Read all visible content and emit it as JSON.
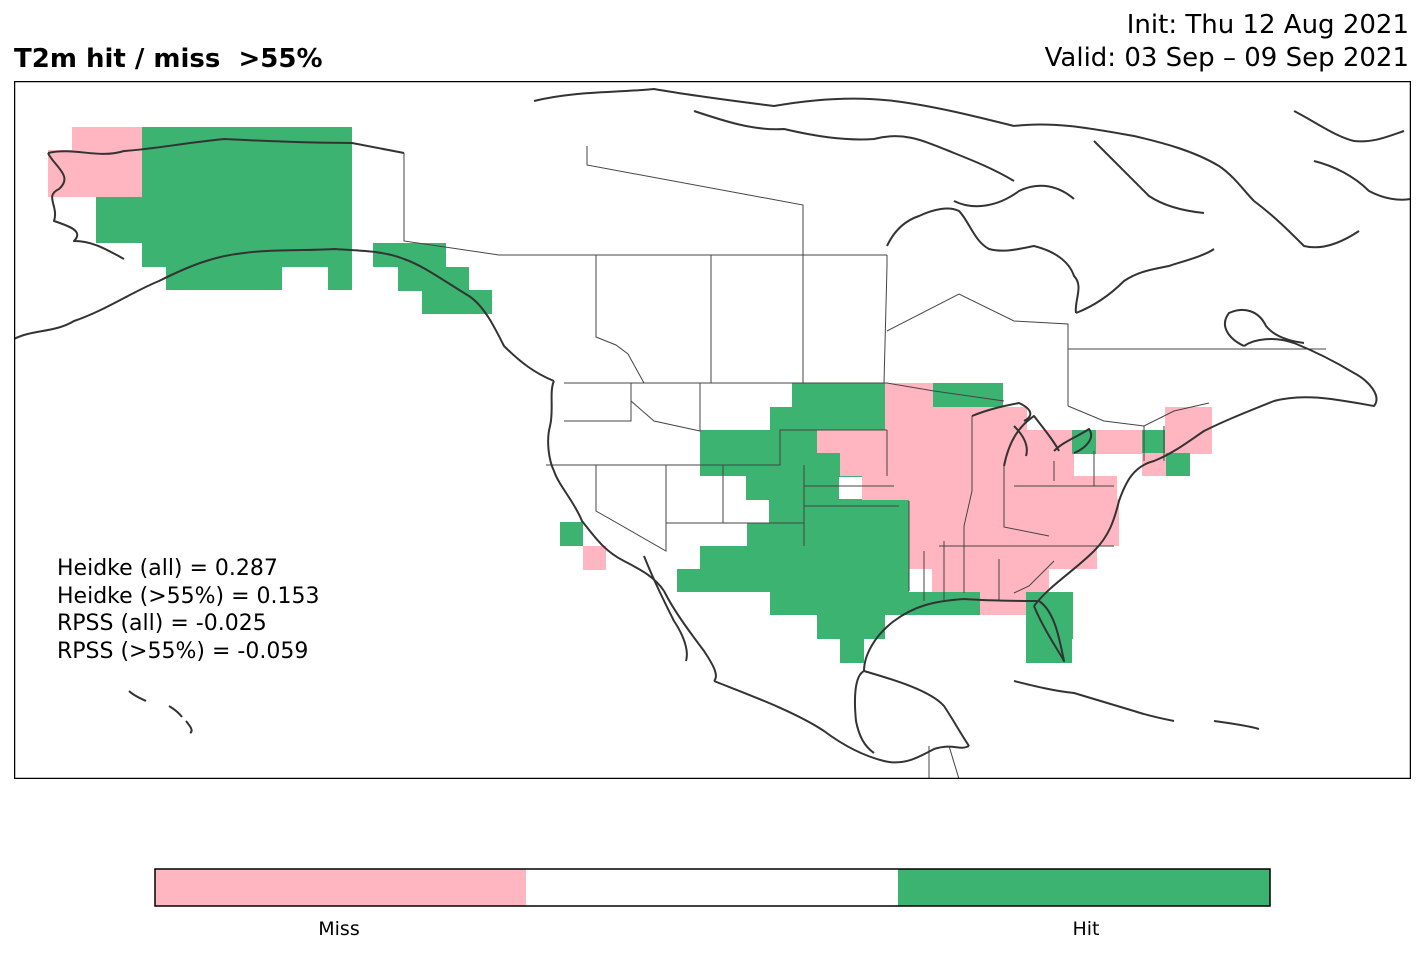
{
  "header": {
    "title": "T2m hit / miss  >55%",
    "init": "Init: Thu 12 Aug 2021",
    "valid": "Valid: 03 Sep – 09 Sep 2021"
  },
  "stats": [
    "Heidke (all) = 0.287",
    "Heidke (>55%) = 0.153",
    "RPSS (all) = -0.025",
    "RPSS (>55%) = -0.059"
  ],
  "legend": {
    "type": "colorbar",
    "segments": [
      {
        "label": "Miss",
        "color": "#ffb6c1"
      },
      {
        "label": "",
        "color": "#ffffff"
      },
      {
        "label": "Hit",
        "color": "#3cb371"
      }
    ]
  },
  "colors": {
    "miss": "#ffb6c1",
    "hit": "#3cb371",
    "coast": "#333333",
    "border": "#444444"
  }
}
